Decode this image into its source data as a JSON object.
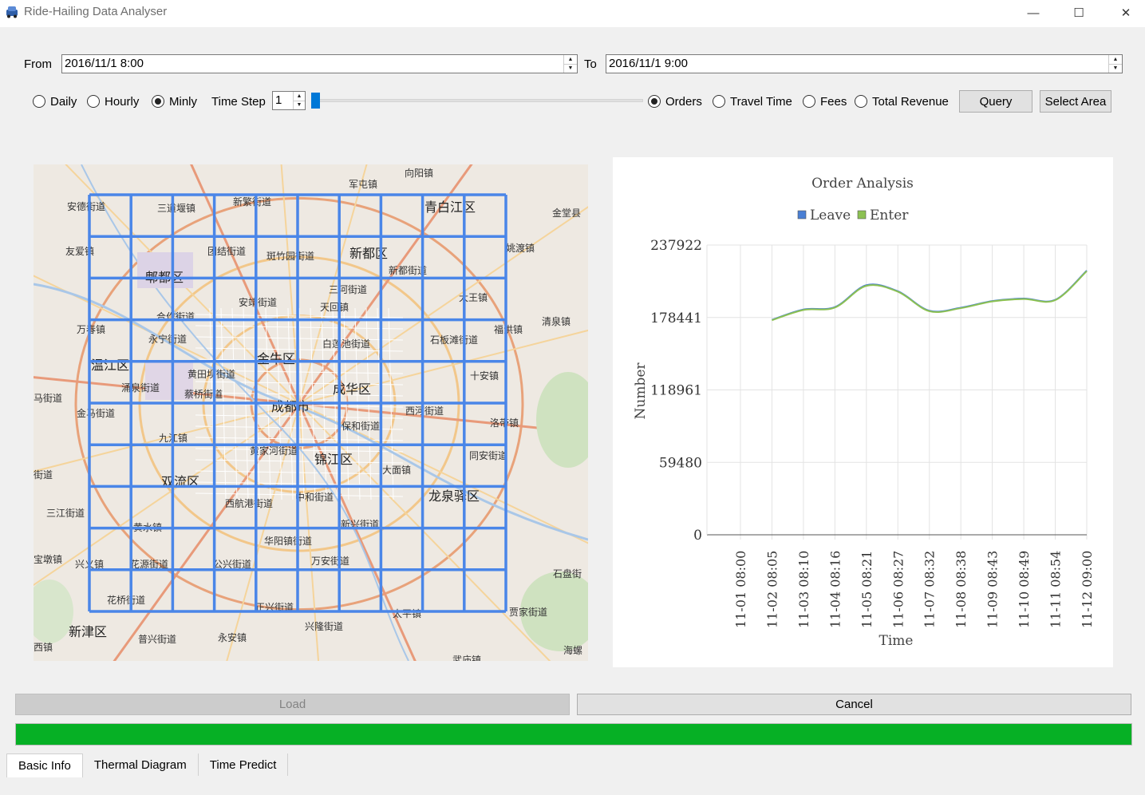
{
  "window": {
    "title": "Ride-Hailing Data Analyser",
    "minimize_glyph": "—",
    "maximize_glyph": "☐",
    "close_glyph": "✕",
    "icon": "car-icon"
  },
  "range": {
    "from_label": "From",
    "from_value": "2016/11/1 8:00",
    "to_label": "To",
    "to_value": "2016/11/1 9:00"
  },
  "granularity": {
    "options": [
      "Daily",
      "Hourly",
      "Minly"
    ],
    "selected": "Minly"
  },
  "time_step": {
    "label": "Time Step",
    "value": "1",
    "slider_fraction": 0.0
  },
  "metric": {
    "options": [
      "Orders",
      "Travel Time",
      "Fees",
      "Total Revenue"
    ],
    "selected": "Orders"
  },
  "buttons": {
    "query": "Query",
    "select_area": "Select Area",
    "load": "Load",
    "cancel": "Cancel"
  },
  "map": {
    "grid_color": "#4a86e8",
    "labels": [
      "军屯镇",
      "向阳镇",
      "安德街道",
      "三道堰镇",
      "新繁街道",
      "青白江区",
      "金堂县",
      "友爱镇",
      "团结街道",
      "斑竹园街道",
      "新都区",
      "新都街道",
      "姚渡镇",
      "郫都区",
      "三河街道",
      "安靖街道",
      "天回镇",
      "大王镇",
      "合作街道",
      "万春镇",
      "永宁街道",
      "白莲池街道",
      "石板滩街道",
      "福洪镇",
      "清泉镇",
      "温江区",
      "金牛区",
      "黄田坝街道",
      "涌泉街道",
      "蔡桥街道",
      "成都市",
      "成华区",
      "马街道",
      "金马街道",
      "西河街道",
      "洛带镇",
      "保和街道",
      "九江镇",
      "黄家河街道",
      "锦江区",
      "大面镇",
      "同安街道",
      "街道",
      "双流区",
      "西航港街道",
      "中和街道",
      "龙泉驿区",
      "三江街道",
      "黄水镇",
      "新兴街道",
      "华阳镇街道",
      "宝墩镇",
      "兴义镇",
      "花源街道",
      "公兴街道",
      "万安街道",
      "石盘街",
      "花桥街道",
      "正兴街道",
      "太平镇",
      "贾家街道",
      "新津区",
      "普兴街道",
      "永安镇",
      "兴隆街道",
      "西镇",
      "海螺",
      "武庙镇",
      "十安镇"
    ]
  },
  "chart_data": {
    "type": "line",
    "title": "Order Analysis",
    "xlabel": "Time",
    "ylabel": "Number",
    "x": [
      "11-01 08:00",
      "11-02 08:05",
      "11-03 08:10",
      "11-04 08:16",
      "11-05 08:21",
      "11-06 08:27",
      "11-07 08:32",
      "11-08 08:38",
      "11-09 08:43",
      "11-10 08:49",
      "11-11 08:54",
      "11-12 09:00"
    ],
    "y_ticks": [
      "0",
      "59480",
      "118961",
      "178441",
      "237922"
    ],
    "ylim": [
      0,
      237922
    ],
    "legend_position": "top",
    "grid": true,
    "series": [
      {
        "name": "Leave",
        "color": "#4a7fd4",
        "values": [
          null,
          176500,
          185000,
          187000,
          205000,
          200000,
          184000,
          186500,
          192000,
          194000,
          193000,
          217000
        ]
      },
      {
        "name": "Enter",
        "color": "#8cc152",
        "values": [
          null,
          176200,
          184600,
          186600,
          204400,
          199600,
          183600,
          186100,
          191600,
          193600,
          192700,
          216500
        ]
      }
    ]
  },
  "progress": {
    "value": 1.0,
    "color": "#06b025"
  },
  "tabs": [
    "Basic Info",
    "Thermal Diagram",
    "Time Predict"
  ],
  "active_tab": "Basic Info"
}
